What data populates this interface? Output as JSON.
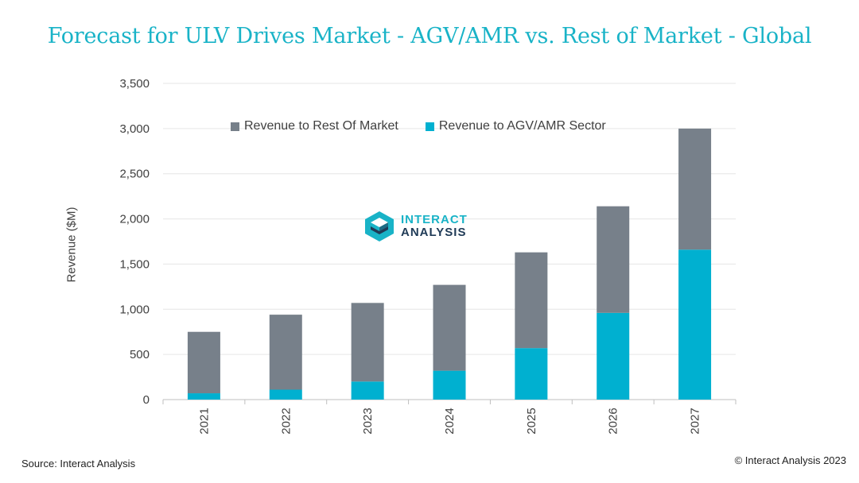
{
  "title": "Forecast for ULV Drives Market - AGV/AMR vs. Rest of Market - Global",
  "source": "Source: Interact Analysis",
  "copyright": "© Interact Analysis 2023",
  "logo": {
    "line1": "INTERACT",
    "line2": "ANALYSIS"
  },
  "colors": {
    "title": "#19b3c7",
    "rest": "#77808a",
    "agv": "#00b0d0"
  },
  "chart_data": {
    "type": "bar",
    "stacked": true,
    "categories": [
      "2021",
      "2022",
      "2023",
      "2024",
      "2025",
      "2026",
      "2027"
    ],
    "series": [
      {
        "name": "Revenue to AGV/AMR Sector",
        "color": "#00b0d0",
        "values": [
          70,
          110,
          200,
          320,
          570,
          960,
          1660
        ]
      },
      {
        "name": "Revenue to Rest Of Market",
        "color": "#77808a",
        "values": [
          680,
          830,
          870,
          950,
          1060,
          1180,
          1340
        ]
      }
    ],
    "ylabel": "Revenue ($M)",
    "xlabel": "",
    "ylim": [
      0,
      3500
    ],
    "yticks": [
      "0",
      "500",
      "1,000",
      "1,500",
      "2,000",
      "2,500",
      "3,000",
      "3,500"
    ],
    "ytick_values": [
      0,
      500,
      1000,
      1500,
      2000,
      2500,
      3000,
      3500
    ],
    "grid": true,
    "legend_position": "top-left"
  }
}
